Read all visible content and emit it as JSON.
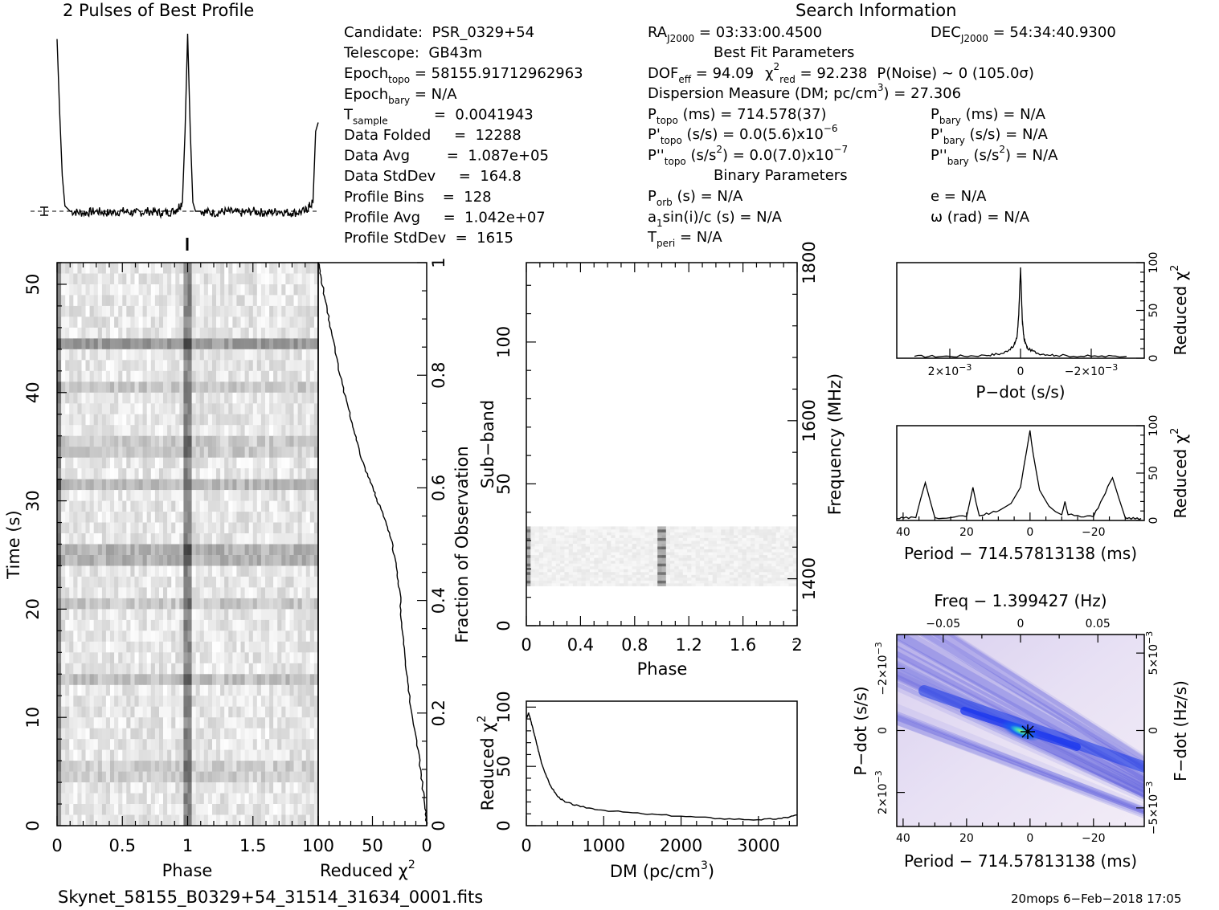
{
  "profile_title": "2 Pulses of Best Profile",
  "search_title": "Search Information",
  "info_left": [
    [
      "Candidate:  PSR_0329+54",
      "",
      ""
    ],
    [
      "Telescope:  GB43m",
      "",
      ""
    ],
    [
      "Epoch",
      "topo",
      " = 58155.91712962963"
    ],
    [
      "Epoch",
      "bary",
      " = N/A"
    ],
    [
      "T",
      "sample",
      "          =  0.0041943"
    ],
    [
      "Data Folded     =  12288",
      "",
      ""
    ],
    [
      "Data Avg        =  1.087e+05",
      "",
      ""
    ],
    [
      "Data StdDev     =  164.8",
      "",
      ""
    ],
    [
      "Profile Bins    =  128",
      "",
      ""
    ],
    [
      "Profile Avg     =  1.042e+07",
      "",
      ""
    ],
    [
      "Profile StdDev  =  1615",
      "",
      ""
    ]
  ],
  "info_mid": {
    "ra": "RA",
    "ra_sub": "J2000",
    "ra_val": " = 03:33:00.4500",
    "best_fit": "Best Fit Parameters",
    "dof": "DOF",
    "dof_sub": "eff",
    "dof_val": " = 94.09",
    "chi": "χ",
    "chi_sup": "2",
    "chi_sub": "red",
    "chi_val": " = 92.238",
    "pnoise": "P(Noise) ~ 0   (105.0σ)",
    "dm_line": "Dispersion Measure (DM; pc/cm",
    "dm_sup": "3",
    "dm_val": ") = 27.306",
    "ptopo": "P",
    "ptopo_sub": "topo",
    "ptopo_val": " (ms) =  714.578(37)",
    "pdtopo": "P'",
    "pdtopo_sub": "topo",
    "pdtopo_val": " (s/s) = 0.0(5.6)x10",
    "pdtopo_exp": "−6",
    "pddtopo": "P''",
    "pddtopo_sub": "topo",
    "pddtopo_val": " (s/s",
    "pddtopo_sup": "2",
    "pddtopo_val2": ") = 0.0(7.0)x10",
    "pddtopo_exp": "−7",
    "binary": "Binary Parameters",
    "porb": "P",
    "porb_sub": "orb",
    "porb_val": " (s) = N/A",
    "a1": "a",
    "a1_sub": "1",
    "a1_val": "sin(i)/c (s) = N/A",
    "tperi": "T",
    "tperi_sub": "peri",
    "tperi_val": " = N/A"
  },
  "info_right": {
    "dec": "DEC",
    "dec_sub": "J2000",
    "dec_val": " = 54:34:40.9300",
    "pbary": "P",
    "pbary_sub": "bary",
    "pbary_val": " (ms) = N/A",
    "pdbary": "P'",
    "pdbary_sub": "bary",
    "pdbary_val": " (s/s) = N/A",
    "pddbary": "P''",
    "pddbary_sub": "bary",
    "pddbary_val": " (s/s",
    "pddbary_sup": "2",
    "pddbary_val2": ") = N/A",
    "ecc": "e = N/A",
    "omega": "ω (rad) = N/A"
  },
  "footer_left": "Skynet_58155_B0329+54_31514_31634_0001.fits",
  "footer_right": "20mops  6−Feb−2018 17:05",
  "axes": {
    "time_ylabel": "Time (s)",
    "phase_xlabel": "Phase",
    "redchi_xlabel": "Reduced χ",
    "redchi_xlabel_sup": "2",
    "frac_label": "Fraction of Observation",
    "subband_label": "Sub−band",
    "freq_label": "Frequency (MHz)",
    "phase2_xlabel": "Phase",
    "dm_xlabel": "DM (pc/cm",
    "dm_xlabel_sup": "3",
    "dm_xlabel_end": ")",
    "dm_ylabel": "Reduced χ",
    "dm_ylabel_sup": "2",
    "pdot_xlabel": "P−dot (s/s)",
    "redchi_r1": "Reduced χ",
    "redchi_r1_sup": "2",
    "period_xlabel": "Period − 714.57813138 (ms)",
    "redchi_r2": "Reduced χ",
    "redchi_r2_sup": "2",
    "freq_top_label": "Freq − 1.399427 (Hz)",
    "period2_xlabel": "Period − 714.57813138 (ms)",
    "pdot_ylabel": "P−dot (s/s)",
    "fdot_ylabel": "F−dot (Hz/s)"
  },
  "ticks": {
    "time_y": [
      "0",
      "10",
      "20",
      "30",
      "40",
      "50"
    ],
    "phase_x": [
      "0",
      "0.5",
      "1",
      "1.5"
    ],
    "redchi_x": [
      "100",
      "50",
      "0"
    ],
    "frac_y": [
      "0",
      "0.2",
      "0.4",
      "0.6",
      "0.8",
      "1"
    ],
    "subband_y": [
      "0",
      "50",
      "100"
    ],
    "freq_y": [
      "1400",
      "1600",
      "1800"
    ],
    "phase2_x": [
      "0",
      "0.4",
      "0.8",
      "1.2",
      "1.6",
      "2"
    ],
    "dm_x": [
      "0",
      "1000",
      "2000",
      "3000"
    ],
    "dm_y": [
      "0",
      "50",
      "100"
    ],
    "pdot_x": [
      "2×10",
      "0",
      "−2×10"
    ],
    "pdot_x_exp": "−3",
    "rc_y": [
      "0",
      "50",
      "100"
    ],
    "period_x": [
      "40",
      "20",
      "0",
      "−20"
    ],
    "freq_top": [
      "−0.05",
      "0",
      "0.05"
    ],
    "pdot2_y": [
      "2×10",
      "0",
      "−2×10"
    ],
    "fdot_y": [
      "−5×10",
      "0",
      "5×10"
    ],
    "pp_exp": "−3"
  },
  "chart_data": [
    {
      "type": "line",
      "title": "2 Pulses of Best Profile",
      "x": [
        0.0,
        0.02,
        0.04,
        0.06,
        0.1,
        0.2,
        0.3,
        0.4,
        0.5,
        0.6,
        0.7,
        0.8,
        0.9,
        0.96,
        0.98,
        1.0,
        1.02,
        1.04,
        1.06,
        1.1,
        1.2,
        1.3,
        1.4,
        1.5,
        1.6,
        1.7,
        1.8,
        1.9,
        1.96,
        1.98,
        2.0
      ],
      "y": [
        0.97,
        0.55,
        0.2,
        0.03,
        0.0,
        -0.01,
        0.0,
        -0.01,
        0.0,
        -0.01,
        0.0,
        -0.01,
        0.0,
        0.05,
        0.45,
        1.0,
        0.45,
        0.05,
        0.0,
        0.0,
        -0.01,
        0.0,
        -0.01,
        0.0,
        -0.01,
        0.0,
        -0.01,
        0.0,
        0.05,
        0.45,
        0.5
      ],
      "xlim": [
        0,
        2
      ]
    },
    {
      "type": "heatmap",
      "xlabel": "Phase",
      "ylabel": "Time (s)",
      "xlim": [
        0,
        2
      ],
      "ylim": [
        0,
        52
      ]
    },
    {
      "type": "line",
      "xlabel": "Reduced χ2",
      "x": [
        100,
        97,
        93,
        88,
        80,
        72,
        65,
        60,
        52,
        46,
        40,
        33,
        28,
        25,
        23,
        20,
        17,
        10,
        5,
        2,
        0
      ],
      "y": [
        1.0,
        0.97,
        0.93,
        0.88,
        0.8,
        0.74,
        0.69,
        0.65,
        0.61,
        0.58,
        0.55,
        0.51,
        0.46,
        0.42,
        0.36,
        0.3,
        0.24,
        0.16,
        0.09,
        0.04,
        0.0
      ],
      "ylim": [
        0,
        1
      ]
    },
    {
      "type": "heatmap",
      "xlabel": "Phase",
      "ylabel": "Sub−band",
      "xlim": [
        0,
        2
      ],
      "ylim": [
        0,
        128
      ]
    },
    {
      "type": "line",
      "xlabel": "DM (pc/cm3)",
      "ylabel": "Reduced χ2",
      "x": [
        0,
        30,
        60,
        100,
        150,
        200,
        300,
        400,
        500,
        700,
        1000,
        1500,
        2000,
        2500,
        3000,
        3300,
        3500
      ],
      "y": [
        90,
        95,
        88,
        78,
        65,
        52,
        35,
        25,
        20,
        16,
        13,
        10,
        8,
        6,
        5,
        6,
        9
      ],
      "xlim": [
        0,
        3500
      ],
      "ylim": [
        0,
        100
      ]
    },
    {
      "type": "line",
      "xlabel": "P−dot (s/s)",
      "ylabel": "Reduced χ2",
      "x": [
        0.003,
        0.002,
        0.001,
        0.0005,
        0.0002,
        0.0001,
        5e-05,
        0.0,
        -5e-05,
        -0.0001,
        -0.0002,
        -0.0005,
        -0.001,
        -0.002,
        -0.003
      ],
      "y": [
        2,
        2,
        3,
        5,
        12,
        22,
        45,
        95,
        40,
        20,
        10,
        5,
        3,
        2,
        2
      ],
      "xlim": [
        0.0035,
        -0.0035
      ],
      "ylim": [
        0,
        100
      ]
    },
    {
      "type": "line",
      "xlabel": "Period − 714.57813138 (ms)",
      "ylabel": "Reduced χ2",
      "x": [
        42,
        36,
        33,
        30,
        20,
        18,
        16,
        10,
        6,
        3,
        1,
        0,
        -1,
        -3,
        -6,
        -10,
        -11,
        -12,
        -20,
        -26,
        -30,
        -35
      ],
      "y": [
        2,
        3,
        40,
        3,
        4,
        35,
        5,
        10,
        18,
        35,
        75,
        95,
        70,
        32,
        15,
        6,
        20,
        6,
        4,
        45,
        3,
        2
      ],
      "xlim": [
        42,
        -36
      ],
      "ylim": [
        0,
        100
      ]
    },
    {
      "type": "heatmap",
      "xlabel": "Period − 714.57813138 (ms)",
      "ylabel": "P−dot (s/s)",
      "xlim": [
        42,
        -36
      ],
      "ylim": [
        0.003,
        -0.003
      ]
    }
  ]
}
